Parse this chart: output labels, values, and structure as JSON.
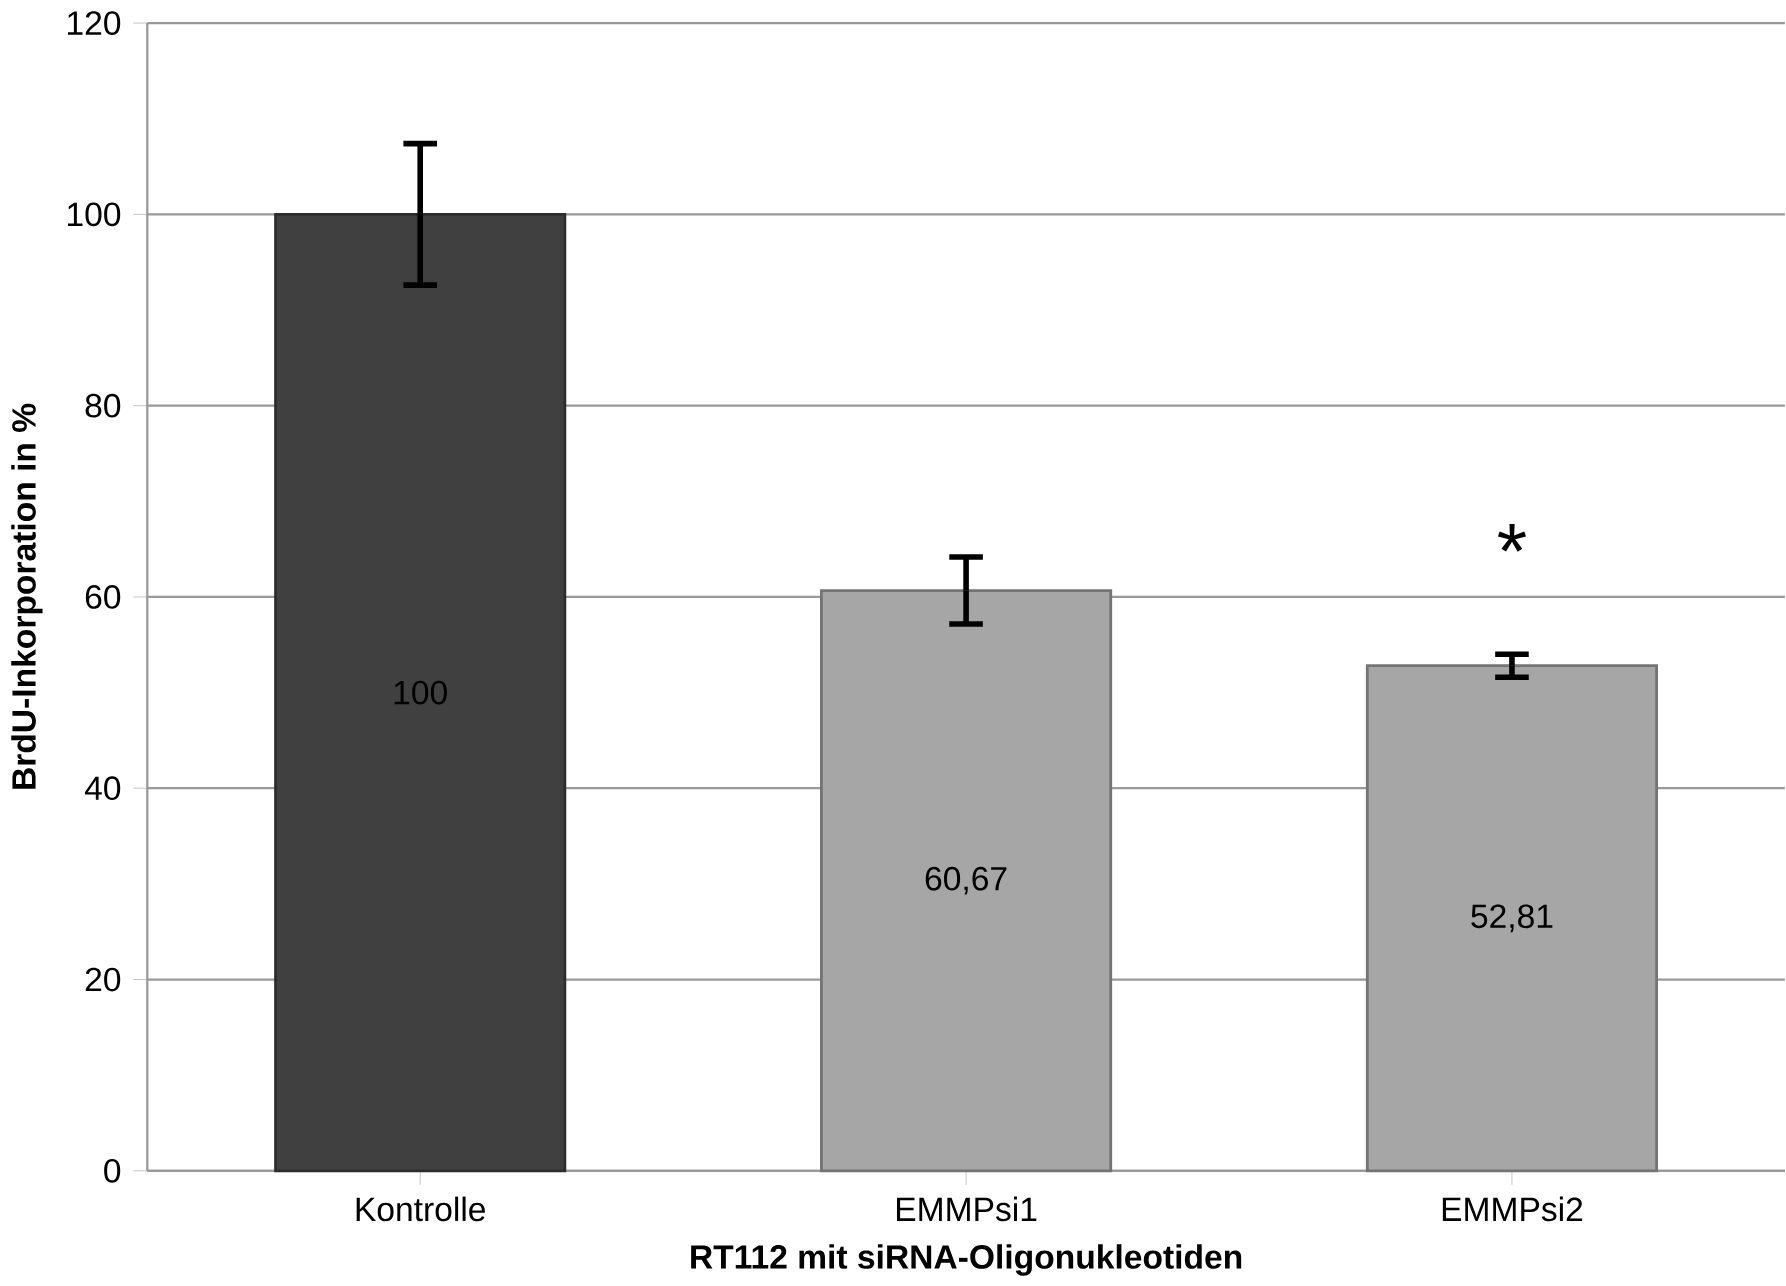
{
  "chart_data": {
    "type": "bar",
    "xlabel": "RT112 mit siRNA-Oligonukleotiden",
    "ylabel": "BrdU-Inkorporation in %",
    "categories": [
      "Kontrolle",
      "EMMPsi1",
      "EMMPsi2"
    ],
    "values": [
      100,
      60.67,
      52.81
    ],
    "colors": [
      "#404040",
      "#a6a6a6",
      "#a6a6a6"
    ],
    "errors": [
      7.4,
      3.5,
      1.2
    ],
    "value_labels": [
      "100",
      "60,67",
      "52,81"
    ],
    "annotations": [
      "*"
    ],
    "ylim": [
      0,
      120
    ],
    "yticks": [
      0,
      20,
      40,
      60,
      80,
      100,
      120
    ],
    "grid": "y"
  }
}
